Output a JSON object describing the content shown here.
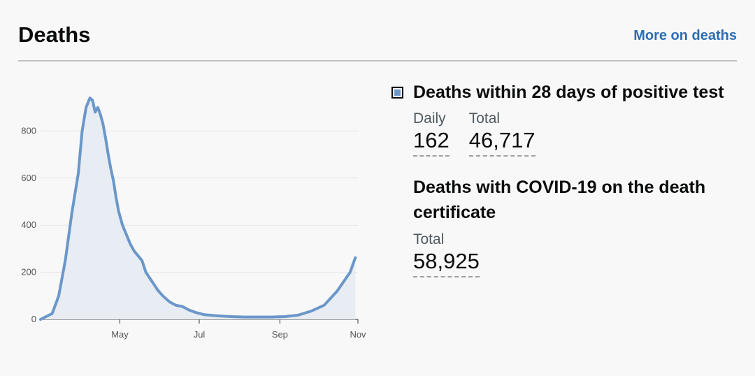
{
  "header": {
    "title": "Deaths",
    "more_link": "More on deaths"
  },
  "colors": {
    "series_line": "#6b97c9",
    "series_fill": "#e8edf3",
    "link": "#2c6db3"
  },
  "chart_data": {
    "type": "area",
    "y_ticks": [
      0,
      200,
      400,
      600,
      800
    ],
    "x_ticks": [
      "May",
      "Jul",
      "Sep",
      "Nov"
    ],
    "ylim": [
      0,
      1000
    ],
    "grid": true,
    "series": [
      {
        "x": [
          "2020-03-01",
          "2020-03-10",
          "2020-03-15",
          "2020-03-20",
          "2020-03-25",
          "2020-03-30",
          "2020-04-02",
          "2020-04-05",
          "2020-04-08",
          "2020-04-10",
          "2020-04-12",
          "2020-04-14",
          "2020-04-16",
          "2020-04-18",
          "2020-04-20",
          "2020-04-22",
          "2020-04-24",
          "2020-04-26",
          "2020-04-28",
          "2020-04-30",
          "2020-05-03",
          "2020-05-06",
          "2020-05-09",
          "2020-05-12",
          "2020-05-15",
          "2020-05-18",
          "2020-05-21",
          "2020-05-24",
          "2020-05-27",
          "2020-05-30",
          "2020-06-03",
          "2020-06-08",
          "2020-06-13",
          "2020-06-18",
          "2020-06-23",
          "2020-06-28",
          "2020-07-05",
          "2020-07-15",
          "2020-07-25",
          "2020-08-05",
          "2020-08-15",
          "2020-08-25",
          "2020-09-05",
          "2020-09-15",
          "2020-09-25",
          "2020-10-05",
          "2020-10-15",
          "2020-10-20",
          "2020-10-25",
          "2020-10-29"
        ],
        "values": [
          0,
          25,
          100,
          250,
          450,
          620,
          800,
          900,
          940,
          930,
          880,
          900,
          870,
          830,
          770,
          700,
          640,
          590,
          520,
          460,
          400,
          360,
          320,
          290,
          270,
          250,
          200,
          175,
          150,
          125,
          100,
          75,
          60,
          55,
          40,
          30,
          20,
          15,
          12,
          10,
          10,
          10,
          12,
          18,
          35,
          60,
          120,
          160,
          200,
          262
        ]
      }
    ]
  },
  "metrics": {
    "within_28_days": {
      "heading": "Deaths within 28 days of positive test",
      "daily_label": "Daily",
      "daily_value": "162",
      "total_label": "Total",
      "total_value": "46,717"
    },
    "death_certificate": {
      "heading": "Deaths with COVID-19 on the death certificate",
      "total_label": "Total",
      "total_value": "58,925"
    }
  }
}
